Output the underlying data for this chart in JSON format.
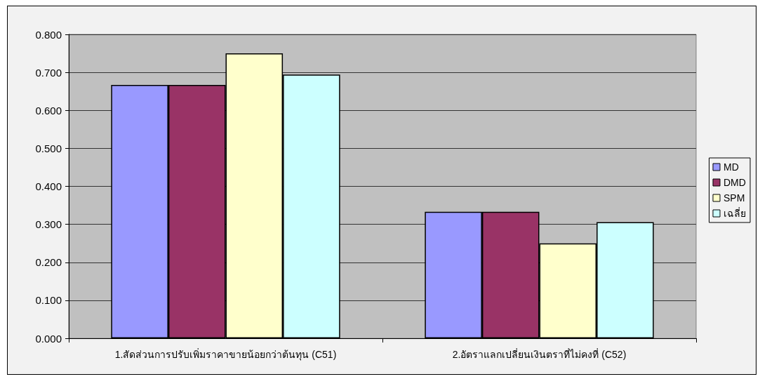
{
  "chart_data": {
    "type": "bar",
    "categories": [
      "1.สัดส่วนการปรับเพิ่มราคาขายน้อยกว่าต้นทุน (C51)",
      "2.อัตราแลกเปลี่ยนเงินตราที่ไม่คงที่ (C52)"
    ],
    "series": [
      {
        "name": "MD",
        "color": "#9999ff",
        "values": [
          0.667,
          0.333
        ]
      },
      {
        "name": "DMD",
        "color": "#993366",
        "values": [
          0.667,
          0.333
        ]
      },
      {
        "name": "SPM",
        "color": "#ffffcc",
        "values": [
          0.75,
          0.25
        ]
      },
      {
        "name": "เฉลี่ย",
        "color": "#ccffff",
        "values": [
          0.694,
          0.306
        ]
      }
    ],
    "ylim": [
      0,
      0.8
    ],
    "yticks": [
      {
        "value": 0,
        "label": "0.000"
      },
      {
        "value": 0.1,
        "label": "0.100"
      },
      {
        "value": 0.2,
        "label": "0.200"
      },
      {
        "value": 0.3,
        "label": "0.300"
      },
      {
        "value": 0.4,
        "label": "0.400"
      },
      {
        "value": 0.5,
        "label": "0.500"
      },
      {
        "value": 0.6,
        "label": "0.600"
      },
      {
        "value": 0.7,
        "label": "0.700"
      },
      {
        "value": 0.8,
        "label": "0.800"
      }
    ],
    "grid": "y",
    "legend": "right"
  }
}
